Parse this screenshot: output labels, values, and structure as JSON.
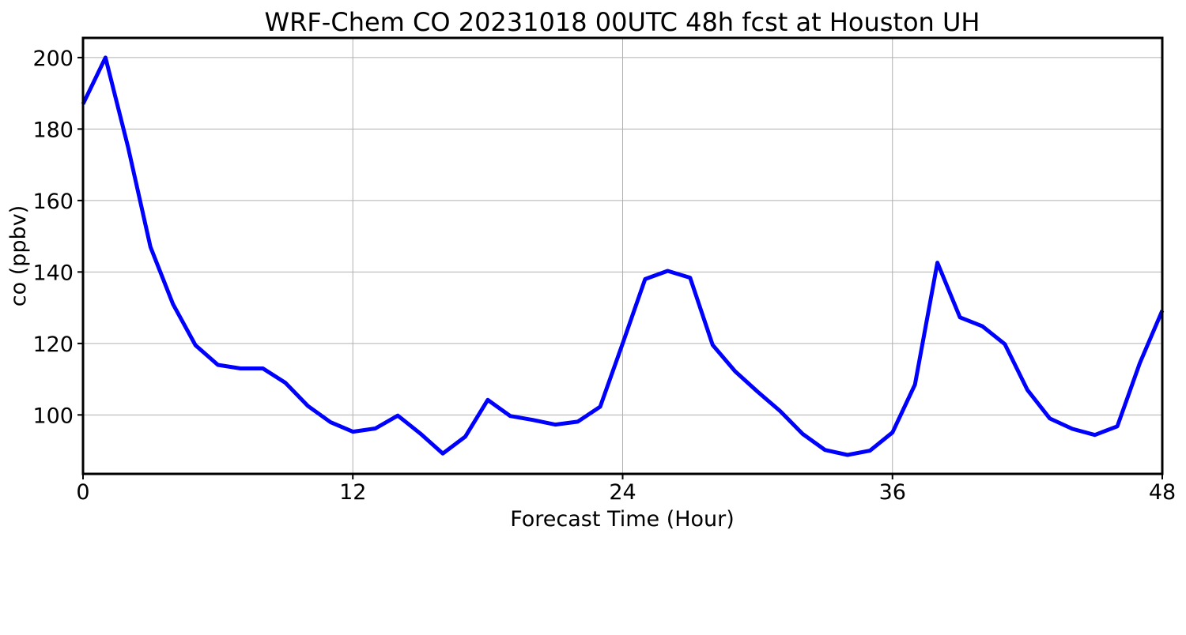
{
  "chart_data": {
    "type": "line",
    "title": "WRF-Chem CO  20231018 00UTC 48h fcst at Houston UH",
    "xlabel": "Forecast Time (Hour)",
    "ylabel": "co  (ppbv)",
    "xlim": [
      0,
      48
    ],
    "ylim": [
      83.5,
      205.5
    ],
    "xticks": [
      0,
      12,
      24,
      36,
      48
    ],
    "yticks": [
      100,
      120,
      140,
      160,
      180,
      200
    ],
    "grid": true,
    "legend": "none",
    "series": [
      {
        "color": "#0000ff",
        "x": [
          0,
          1,
          2,
          3,
          4,
          5,
          6,
          7,
          8,
          9,
          10,
          11,
          12,
          13,
          14,
          15,
          16,
          17,
          18,
          19,
          20,
          21,
          22,
          23,
          24,
          25,
          26,
          27,
          28,
          29,
          30,
          31,
          32,
          33,
          34,
          35,
          36,
          37,
          38,
          39,
          40,
          41,
          42,
          43,
          44,
          45,
          46,
          47,
          48
        ],
        "y": [
          187,
          200,
          175,
          147,
          131,
          119.5,
          114,
          113,
          113,
          109,
          102.5,
          98,
          95.3,
          96.2,
          99.8,
          94.8,
          89.2,
          93.9,
          104.2,
          99.7,
          98.6,
          97.3,
          98.1,
          102.3,
          120,
          138,
          140.3,
          138.4,
          119.6,
          112.2,
          106.5,
          101.1,
          94.7,
          90.2,
          88.8,
          90.0,
          95.1,
          108.5,
          142.6,
          127.3,
          124.8,
          119.8,
          107.0,
          99.0,
          96.1,
          94.4,
          96.8,
          114.5,
          129.2
        ]
      }
    ]
  }
}
